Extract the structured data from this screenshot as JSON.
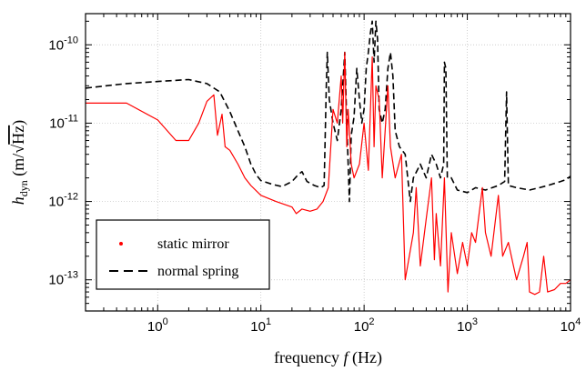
{
  "chart_data": {
    "type": "line",
    "x_scale": "log",
    "y_scale": "log",
    "xlim": [
      0.2,
      10000
    ],
    "ylim": [
      4e-14,
      2.5e-10
    ],
    "grid": true,
    "legend_placement": "bottom-left",
    "xlabel": "frequency f (Hz)",
    "xlabel_parts": {
      "pre": "frequency ",
      "var": "f",
      "post": " (Hz)"
    },
    "ylabel": "h_dyn (m/√Hz)",
    "ylabel_parts": {
      "var": "h",
      "sub": "dyn",
      "pre_unit": " (m/",
      "sqrt": "√",
      "radicand": "Hz",
      "post": ")"
    },
    "x_ticks": [
      {
        "value": 1,
        "base": "10",
        "exp": "0"
      },
      {
        "value": 10,
        "base": "10",
        "exp": "1"
      },
      {
        "value": 100,
        "base": "10",
        "exp": "2"
      },
      {
        "value": 1000,
        "base": "10",
        "exp": "3"
      },
      {
        "value": 10000,
        "base": "10",
        "exp": "4"
      }
    ],
    "y_ticks": [
      {
        "value": 1e-13,
        "base": "10",
        "exp": "-13"
      },
      {
        "value": 1e-12,
        "base": "10",
        "exp": "-12"
      },
      {
        "value": 1e-11,
        "base": "10",
        "exp": "-11"
      },
      {
        "value": 1e-10,
        "base": "10",
        "exp": "-10"
      }
    ],
    "series": [
      {
        "name": "normal spring",
        "color": "#000000",
        "style": "dashed",
        "points": [
          [
            0.2,
            2.8e-11
          ],
          [
            0.5,
            3.2e-11
          ],
          [
            1,
            3.4e-11
          ],
          [
            2,
            3.6e-11
          ],
          [
            3,
            3.2e-11
          ],
          [
            4,
            2.5e-11
          ],
          [
            5,
            1.4e-11
          ],
          [
            6,
            8e-12
          ],
          [
            7,
            5e-12
          ],
          [
            8,
            3e-12
          ],
          [
            9,
            2.2e-12
          ],
          [
            10,
            1.85e-12
          ],
          [
            13,
            1.65e-12
          ],
          [
            16,
            1.55e-12
          ],
          [
            20,
            1.8e-12
          ],
          [
            23,
            2.2e-12
          ],
          [
            25,
            2.4e-12
          ],
          [
            28,
            1.8e-12
          ],
          [
            33,
            1.6e-12
          ],
          [
            38,
            1.5e-12
          ],
          [
            41,
            1.6e-12
          ],
          [
            43,
            3e-11
          ],
          [
            44,
            8e-11
          ],
          [
            46,
            2e-11
          ],
          [
            50,
            1e-11
          ],
          [
            55,
            6e-12
          ],
          [
            60,
            1.5e-11
          ],
          [
            65,
            8e-11
          ],
          [
            68,
            1e-11
          ],
          [
            72,
            1e-12
          ],
          [
            75,
            7e-12
          ],
          [
            80,
            1.2e-11
          ],
          [
            85,
            5e-11
          ],
          [
            90,
            2e-11
          ],
          [
            95,
            1e-11
          ],
          [
            100,
            1.5e-11
          ],
          [
            105,
            5e-11
          ],
          [
            110,
            8e-11
          ],
          [
            115,
            1.4e-10
          ],
          [
            120,
            2e-10
          ],
          [
            125,
            6e-11
          ],
          [
            130,
            2e-10
          ],
          [
            135,
            1.2e-10
          ],
          [
            140,
            1.5e-11
          ],
          [
            150,
            1e-11
          ],
          [
            160,
            1.5e-11
          ],
          [
            170,
            5e-11
          ],
          [
            180,
            8e-11
          ],
          [
            190,
            4e-11
          ],
          [
            200,
            8e-12
          ],
          [
            220,
            5e-12
          ],
          [
            250,
            4e-12
          ],
          [
            280,
            1e-12
          ],
          [
            300,
            2e-12
          ],
          [
            350,
            3e-12
          ],
          [
            400,
            2e-12
          ],
          [
            450,
            4e-12
          ],
          [
            500,
            3e-12
          ],
          [
            550,
            2e-12
          ],
          [
            590,
            3e-12
          ],
          [
            600,
            6e-11
          ],
          [
            620,
            5e-11
          ],
          [
            640,
            2e-12
          ],
          [
            700,
            2e-12
          ],
          [
            800,
            1.4e-12
          ],
          [
            1000,
            1.3e-12
          ],
          [
            1200,
            1.5e-12
          ],
          [
            1500,
            1.4e-12
          ],
          [
            2000,
            1.6e-12
          ],
          [
            2300,
            1.8e-12
          ],
          [
            2400,
            2.5e-11
          ],
          [
            2500,
            1.6e-12
          ],
          [
            3000,
            1.5e-12
          ],
          [
            4000,
            1.4e-12
          ],
          [
            5000,
            1.5e-12
          ],
          [
            6000,
            1.6e-12
          ],
          [
            7000,
            1.7e-12
          ],
          [
            8000,
            1.8e-12
          ],
          [
            9000,
            1.9e-12
          ],
          [
            10000,
            2.1e-12
          ]
        ]
      },
      {
        "name": "static mirror",
        "color": "#ff0000",
        "style": "solid",
        "points": [
          [
            0.2,
            1.8e-11
          ],
          [
            0.5,
            1.8e-11
          ],
          [
            1,
            1.1e-11
          ],
          [
            1.5,
            6e-12
          ],
          [
            2,
            6e-12
          ],
          [
            2.5,
            1e-11
          ],
          [
            3,
            1.9e-11
          ],
          [
            3.5,
            2.3e-11
          ],
          [
            3.8,
            7e-12
          ],
          [
            4.2,
            1.3e-11
          ],
          [
            4.5,
            5e-12
          ],
          [
            5,
            4.5e-12
          ],
          [
            6,
            3e-12
          ],
          [
            7,
            2e-12
          ],
          [
            8,
            1.6e-12
          ],
          [
            10,
            1.2e-12
          ],
          [
            14,
            1e-12
          ],
          [
            20,
            8.5e-13
          ],
          [
            22,
            7e-13
          ],
          [
            25,
            8e-13
          ],
          [
            30,
            7.5e-13
          ],
          [
            35,
            8e-13
          ],
          [
            40,
            1e-12
          ],
          [
            45,
            1.5e-12
          ],
          [
            50,
            1.5e-11
          ],
          [
            55,
            1e-11
          ],
          [
            60,
            4e-11
          ],
          [
            62,
            1e-11
          ],
          [
            65,
            8e-11
          ],
          [
            68,
            5e-12
          ],
          [
            70,
            1.5e-11
          ],
          [
            75,
            3e-12
          ],
          [
            80,
            2e-12
          ],
          [
            90,
            3e-12
          ],
          [
            100,
            1e-11
          ],
          [
            110,
            2.5e-12
          ],
          [
            120,
            7e-11
          ],
          [
            125,
            5e-12
          ],
          [
            130,
            3e-11
          ],
          [
            140,
            2e-11
          ],
          [
            150,
            2e-12
          ],
          [
            170,
            3e-11
          ],
          [
            180,
            5e-12
          ],
          [
            200,
            2e-12
          ],
          [
            230,
            4e-12
          ],
          [
            250,
            1e-13
          ],
          [
            300,
            4e-13
          ],
          [
            320,
            1.5e-12
          ],
          [
            350,
            1.5e-13
          ],
          [
            400,
            6e-13
          ],
          [
            450,
            2e-12
          ],
          [
            480,
            1.8e-13
          ],
          [
            500,
            7e-13
          ],
          [
            550,
            1.5e-13
          ],
          [
            600,
            2e-12
          ],
          [
            650,
            7e-14
          ],
          [
            700,
            4e-13
          ],
          [
            800,
            1.2e-13
          ],
          [
            900,
            3e-13
          ],
          [
            1000,
            1.5e-13
          ],
          [
            1100,
            4e-13
          ],
          [
            1200,
            3e-13
          ],
          [
            1400,
            1.5e-12
          ],
          [
            1500,
            4e-13
          ],
          [
            1700,
            2e-13
          ],
          [
            2000,
            1.2e-12
          ],
          [
            2200,
            2e-13
          ],
          [
            2500,
            3e-13
          ],
          [
            2800,
            1.5e-13
          ],
          [
            3000,
            1e-13
          ],
          [
            3500,
            2e-13
          ],
          [
            3800,
            3e-13
          ],
          [
            4000,
            7e-14
          ],
          [
            4500,
            6.5e-14
          ],
          [
            5000,
            7e-14
          ],
          [
            5500,
            2e-13
          ],
          [
            6000,
            7e-14
          ],
          [
            7000,
            7.5e-14
          ],
          [
            8000,
            9e-14
          ],
          [
            9000,
            9e-14
          ],
          [
            10000,
            1e-13
          ]
        ]
      }
    ],
    "legend": [
      {
        "label": "static mirror",
        "marker": "dot",
        "color": "#ff0000"
      },
      {
        "label": "normal spring",
        "marker": "dash",
        "color": "#000000"
      }
    ]
  }
}
